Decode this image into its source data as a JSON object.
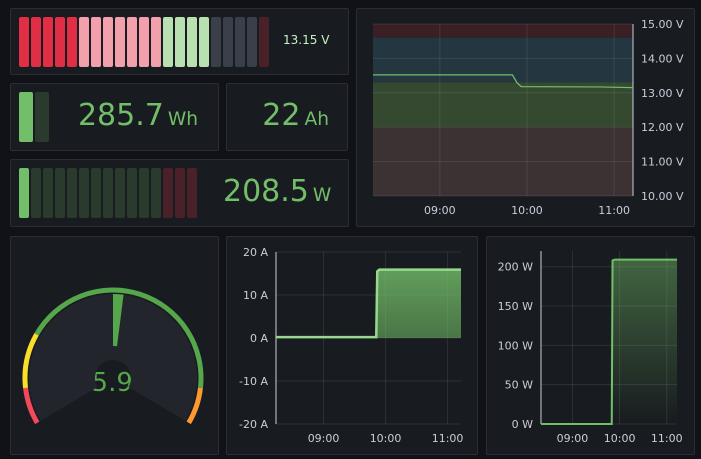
{
  "voltage_bar": {
    "value": "13.15",
    "unit": "V",
    "cells": [
      "#e02f44",
      "#e02f44",
      "#e02f44",
      "#e02f44",
      "#e02f44",
      "#f2a0ab",
      "#f2a0ab",
      "#f2a0ab",
      "#f2a0ab",
      "#f2a0ab",
      "#f2a0ab",
      "#f2a0ab",
      "#b8e0b0",
      "#b8e0b0",
      "#b8e0b0",
      "#b8e0b0",
      "#3a3f4a",
      "#3a3f4a",
      "#3a3f4a",
      "#3a3f4a",
      "#4a2128"
    ]
  },
  "energy": {
    "value": "285.7",
    "unit": "Wh",
    "cells": [
      "#73bf69",
      "#2a3a2c"
    ]
  },
  "charge": {
    "value": "22",
    "unit": "Ah"
  },
  "power_bar": {
    "value": "208.5",
    "unit": "W",
    "cells": [
      "#73bf69",
      "#2a3a2c",
      "#2a3a2c",
      "#2a3a2c",
      "#2a3a2c",
      "#2a3a2c",
      "#2a3a2c",
      "#2a3a2c",
      "#2a3a2c",
      "#2a3a2c",
      "#2a3a2c",
      "#2a3a2c",
      "#4a2128",
      "#4a2128",
      "#4a2128"
    ]
  },
  "current_gauge": {
    "value": "15.9",
    "unit": "A",
    "fraction": 0.53,
    "colors": {
      "red": "#f2495c",
      "yellow": "#fade2a",
      "green": "#56a64b",
      "orange": "#ff9830"
    }
  },
  "chart_data": [
    {
      "type": "line",
      "ylabel": "",
      "yticks": [
        "15.00 V",
        "14.00 V",
        "13.00 V",
        "12.00 V",
        "11.00 V",
        "10.00 V"
      ],
      "ylim": [
        10,
        15
      ],
      "xticks": [
        "09:00",
        "10:00",
        "11:00"
      ],
      "xlim": [
        "08:14",
        "11:13"
      ],
      "bands": [
        {
          "from": 14.6,
          "to": 15,
          "color": "#3a1f25"
        },
        {
          "from": 13.3,
          "to": 14.6,
          "color": "#243640"
        },
        {
          "from": 12,
          "to": 13.3,
          "color": "#34492f"
        },
        {
          "from": 10,
          "to": 12,
          "color": "#3c3133"
        }
      ],
      "series": [
        {
          "color": "#73bf69",
          "points": [
            [
              "08:14",
              13.52
            ],
            [
              "09:50",
              13.52
            ],
            [
              "09:53",
              13.3
            ],
            [
              "09:56",
              13.18
            ],
            [
              "10:50",
              13.17
            ],
            [
              "11:13",
              13.15
            ]
          ]
        }
      ]
    },
    {
      "type": "area",
      "yticks": [
        "20 A",
        "10 A",
        "0 A",
        "-10 A",
        "-20 A"
      ],
      "ylim": [
        -20,
        20
      ],
      "xticks": [
        "09:00",
        "10:00",
        "11:00"
      ],
      "xlim": [
        "08:14",
        "11:13"
      ],
      "series": [
        {
          "color": "#96d98d",
          "points": [
            [
              "08:14",
              0.2
            ],
            [
              "09:51",
              0.2
            ],
            [
              "09:52",
              15.5
            ],
            [
              "09:54",
              15.9
            ],
            [
              "11:13",
              15.9
            ]
          ]
        }
      ]
    },
    {
      "type": "area",
      "yticks": [
        "200 W",
        "150 W",
        "100 W",
        "50 W",
        "0 W"
      ],
      "ylim": [
        0,
        220
      ],
      "xticks": [
        "09:00",
        "10:00",
        "11:00"
      ],
      "xlim": [
        "08:20",
        "11:13"
      ],
      "series": [
        {
          "color": "#73bf69",
          "points": [
            [
              "08:20",
              0
            ],
            [
              "09:50",
              0
            ],
            [
              "09:51",
              208
            ],
            [
              "09:54",
              209
            ],
            [
              "11:13",
              209
            ]
          ]
        }
      ]
    }
  ]
}
